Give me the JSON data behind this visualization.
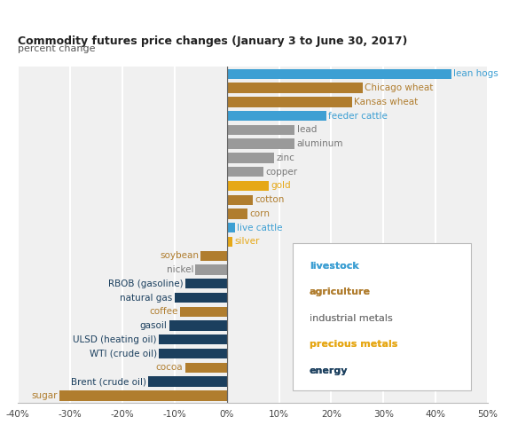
{
  "title": "Commodity futures price changes (January 3 to June 30, 2017)",
  "subtitle": "percent change",
  "categories": [
    "lean hogs",
    "Chicago wheat",
    "Kansas wheat",
    "feeder cattle",
    "lead",
    "aluminum",
    "zinc",
    "copper",
    "gold",
    "cotton",
    "corn",
    "live cattle",
    "silver",
    "soybean",
    "nickel",
    "RBOB (gasoline)",
    "natural gas",
    "coffee",
    "gasoil",
    "ULSD (heating oil)",
    "WTI (crude oil)",
    "cocoa",
    "Brent (crude oil)",
    "sugar"
  ],
  "values": [
    43,
    26,
    24,
    19,
    13,
    13,
    9,
    7,
    8,
    5,
    4,
    1.5,
    1,
    -5,
    -6,
    -8,
    -10,
    -9,
    -11,
    -13,
    -13,
    -8,
    -15,
    -32
  ],
  "colors": [
    "#3d9fd3",
    "#b07d2e",
    "#b07d2e",
    "#3d9fd3",
    "#9a9a9a",
    "#9a9a9a",
    "#9a9a9a",
    "#9a9a9a",
    "#e6a817",
    "#b07d2e",
    "#b07d2e",
    "#3d9fd3",
    "#e6a817",
    "#b07d2e",
    "#9a9a9a",
    "#1b3f5e",
    "#1b3f5e",
    "#b07d2e",
    "#1b3f5e",
    "#1b3f5e",
    "#1b3f5e",
    "#b07d2e",
    "#1b3f5e",
    "#b07d2e"
  ],
  "label_colors": [
    "#3d9fd3",
    "#b07d2e",
    "#b07d2e",
    "#3d9fd3",
    "#777777",
    "#777777",
    "#777777",
    "#777777",
    "#e6a817",
    "#b07d2e",
    "#b07d2e",
    "#3d9fd3",
    "#e6a817",
    "#b07d2e",
    "#777777",
    "#1b3f5e",
    "#1b3f5e",
    "#b07d2e",
    "#1b3f5e",
    "#1b3f5e",
    "#1b3f5e",
    "#b07d2e",
    "#1b3f5e",
    "#b07d2e"
  ],
  "xlim": [
    -40,
    50
  ],
  "xticks": [
    -40,
    -30,
    -20,
    -10,
    0,
    10,
    20,
    30,
    40,
    50
  ],
  "xtick_labels": [
    "-40%",
    "-30%",
    "-20%",
    "-10%",
    "0%",
    "10%",
    "20%",
    "30%",
    "40%",
    "50%"
  ],
  "legend_labels": [
    "livestock",
    "agriculture",
    "industrial metals",
    "precious metals",
    "energy"
  ],
  "legend_colors": [
    "#3d9fd3",
    "#b07d2e",
    "#777777",
    "#e6a817",
    "#1b3f5e"
  ],
  "legend_bold": [
    true,
    true,
    false,
    true,
    true
  ],
  "bg_color": "#f0f0f0",
  "grid_color": "#ffffff",
  "bar_height": 0.72
}
